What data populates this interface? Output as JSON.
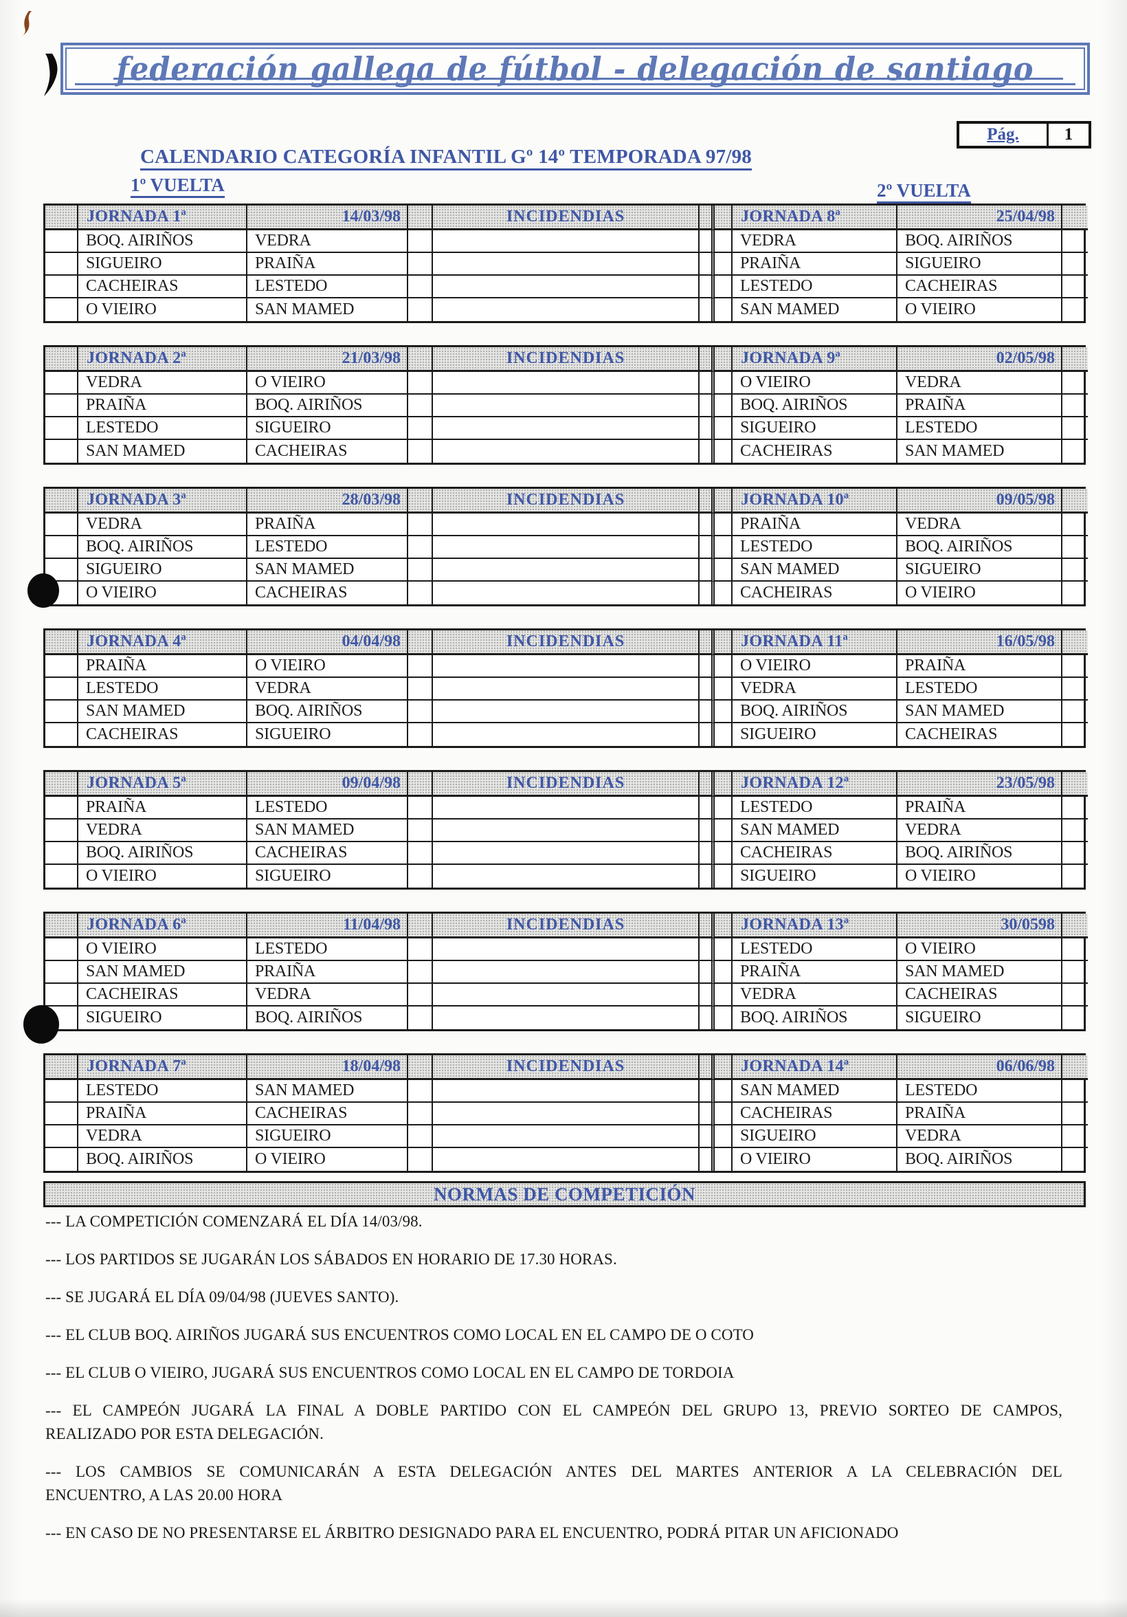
{
  "banner": {
    "text": "federación gallega de fútbol  -  delegación de santiago"
  },
  "page": {
    "number_label": "Pág.",
    "number": "1"
  },
  "title": "CALENDARIO CATEGORÍA INFANTIL Gº 14º TEMPORADA 97/98",
  "labels": {
    "vuelta1": "1º VUELTA",
    "vuelta2": "2º VUELTA",
    "incidencias": "INCIDENDIAS"
  },
  "rounds": [
    {
      "left": {
        "name": "JORNADA 1ª",
        "date": "14/03/98",
        "matches": [
          [
            "BOQ. AIRIÑOS",
            "VEDRA"
          ],
          [
            "SIGUEIRO",
            "PRAIÑA"
          ],
          [
            "CACHEIRAS",
            "LESTEDO"
          ],
          [
            "O VIEIRO",
            "SAN MAMED"
          ]
        ]
      },
      "right": {
        "name": "JORNADA 8ª",
        "date": "25/04/98",
        "matches": [
          [
            "VEDRA",
            "BOQ. AIRIÑOS"
          ],
          [
            "PRAIÑA",
            "SIGUEIRO"
          ],
          [
            "LESTEDO",
            "CACHEIRAS"
          ],
          [
            "SAN MAMED",
            "O VIEIRO"
          ]
        ]
      }
    },
    {
      "left": {
        "name": "JORNADA 2ª",
        "date": "21/03/98",
        "matches": [
          [
            "VEDRA",
            "O VIEIRO"
          ],
          [
            "PRAIÑA",
            "BOQ. AIRIÑOS"
          ],
          [
            "LESTEDO",
            "SIGUEIRO"
          ],
          [
            "SAN MAMED",
            "CACHEIRAS"
          ]
        ]
      },
      "right": {
        "name": "JORNADA 9ª",
        "date": "02/05/98",
        "matches": [
          [
            "O VIEIRO",
            "VEDRA"
          ],
          [
            "BOQ. AIRIÑOS",
            "PRAIÑA"
          ],
          [
            "SIGUEIRO",
            "LESTEDO"
          ],
          [
            "CACHEIRAS",
            "SAN MAMED"
          ]
        ]
      }
    },
    {
      "left": {
        "name": "JORNADA 3ª",
        "date": "28/03/98",
        "matches": [
          [
            "VEDRA",
            "PRAIÑA"
          ],
          [
            "BOQ. AIRIÑOS",
            "LESTEDO"
          ],
          [
            "SIGUEIRO",
            "SAN MAMED"
          ],
          [
            "O VIEIRO",
            "CACHEIRAS"
          ]
        ]
      },
      "right": {
        "name": "JORNADA 10ª",
        "date": "09/05/98",
        "matches": [
          [
            "PRAIÑA",
            "VEDRA"
          ],
          [
            "LESTEDO",
            "BOQ. AIRIÑOS"
          ],
          [
            "SAN MAMED",
            "SIGUEIRO"
          ],
          [
            "CACHEIRAS",
            "O VIEIRO"
          ]
        ]
      }
    },
    {
      "left": {
        "name": "JORNADA 4ª",
        "date": "04/04/98",
        "matches": [
          [
            "PRAIÑA",
            "O VIEIRO"
          ],
          [
            "LESTEDO",
            "VEDRA"
          ],
          [
            "SAN MAMED",
            "BOQ. AIRIÑOS"
          ],
          [
            "CACHEIRAS",
            "SIGUEIRO"
          ]
        ]
      },
      "right": {
        "name": "JORNADA 11ª",
        "date": "16/05/98",
        "matches": [
          [
            "O VIEIRO",
            "PRAIÑA"
          ],
          [
            "VEDRA",
            "LESTEDO"
          ],
          [
            "BOQ. AIRIÑOS",
            "SAN MAMED"
          ],
          [
            "SIGUEIRO",
            "CACHEIRAS"
          ]
        ]
      }
    },
    {
      "left": {
        "name": "JORNADA 5ª",
        "date": "09/04/98",
        "matches": [
          [
            "PRAIÑA",
            "LESTEDO"
          ],
          [
            "VEDRA",
            "SAN MAMED"
          ],
          [
            "BOQ. AIRIÑOS",
            "CACHEIRAS"
          ],
          [
            "O VIEIRO",
            "SIGUEIRO"
          ]
        ]
      },
      "right": {
        "name": "JORNADA 12ª",
        "date": "23/05/98",
        "matches": [
          [
            "LESTEDO",
            "PRAIÑA"
          ],
          [
            "SAN MAMED",
            "VEDRA"
          ],
          [
            "CACHEIRAS",
            "BOQ. AIRIÑOS"
          ],
          [
            "SIGUEIRO",
            "O VIEIRO"
          ]
        ]
      }
    },
    {
      "left": {
        "name": "JORNADA 6ª",
        "date": "11/04/98",
        "matches": [
          [
            "O VIEIRO",
            "LESTEDO"
          ],
          [
            "SAN MAMED",
            "PRAIÑA"
          ],
          [
            "CACHEIRAS",
            "VEDRA"
          ],
          [
            "SIGUEIRO",
            "BOQ. AIRIÑOS"
          ]
        ]
      },
      "right": {
        "name": "JORNADA 13ª",
        "date": "30/0598",
        "matches": [
          [
            "LESTEDO",
            "O VIEIRO"
          ],
          [
            "PRAIÑA",
            "SAN MAMED"
          ],
          [
            "VEDRA",
            "CACHEIRAS"
          ],
          [
            "BOQ. AIRIÑOS",
            "SIGUEIRO"
          ]
        ]
      }
    },
    {
      "left": {
        "name": "JORNADA 7ª",
        "date": "18/04/98",
        "matches": [
          [
            "LESTEDO",
            "SAN MAMED"
          ],
          [
            "PRAIÑA",
            "CACHEIRAS"
          ],
          [
            "VEDRA",
            "SIGUEIRO"
          ],
          [
            "BOQ. AIRIÑOS",
            "O VIEIRO"
          ]
        ]
      },
      "right": {
        "name": "JORNADA 14ª",
        "date": "06/06/98",
        "matches": [
          [
            "SAN MAMED",
            "LESTEDO"
          ],
          [
            "CACHEIRAS",
            "PRAIÑA"
          ],
          [
            "SIGUEIRO",
            "VEDRA"
          ],
          [
            "O VIEIRO",
            "BOQ. AIRIÑOS"
          ]
        ]
      }
    }
  ],
  "normas": {
    "title": "NORMAS DE COMPETICIÓN",
    "rules": [
      {
        "lines": [
          "--- LA COMPETICIÓN COMENZARÁ EL DÍA 14/03/98."
        ]
      },
      {
        "lines": [
          "--- LOS PARTIDOS SE  JUGARÁN LOS SÁBADOS EN HORARIO DE 17.30 HORAS."
        ]
      },
      {
        "lines": [
          "--- SE  JUGARÁ EL DÍA  09/04/98 (JUEVES SANTO)."
        ]
      },
      {
        "lines": [
          "--- EL CLUB BOQ. AIRIÑOS JUGARÁ SUS ENCUENTROS  COMO LOCAL EN EL CAMPO DE O COTO"
        ]
      },
      {
        "lines": [
          "--- EL CLUB O VIEIRO, JUGARÁ SUS ENCUENTROS COMO LOCAL EN EL CAMPO DE  TORDOIA"
        ]
      },
      {
        "justify": true,
        "lines": [
          "--- EL CAMPEÓN JUGARÁ LA FINAL A DOBLE PARTIDO CON EL CAMPEÓN DEL GRUPO 13, PREVIO SORTEO DE CAMPOS,",
          "REALIZADO POR ESTA DELEGACIÓN."
        ]
      },
      {
        "justify": true,
        "lines": [
          "--- LOS CAMBIOS SE COMUNICARÁN A ESTA DELEGACIÓN ANTES DEL MARTES ANTERIOR  A LA CELEBRACIÓN DEL",
          "ENCUENTRO, A LAS 20.00 HORA"
        ]
      },
      {
        "lines": [
          "--- EN CASO DE NO PRESENTARSE EL ÁRBITRO DESIGNADO PARA EL ENCUENTRO, PODRÁ PITAR UN AFICIONADO"
        ]
      }
    ]
  },
  "colors": {
    "ink_blue": "#3f57a6",
    "banner_blue": "#5e78b7",
    "header_gray": "#e6e6e4",
    "border_black": "#1b1b1b"
  }
}
